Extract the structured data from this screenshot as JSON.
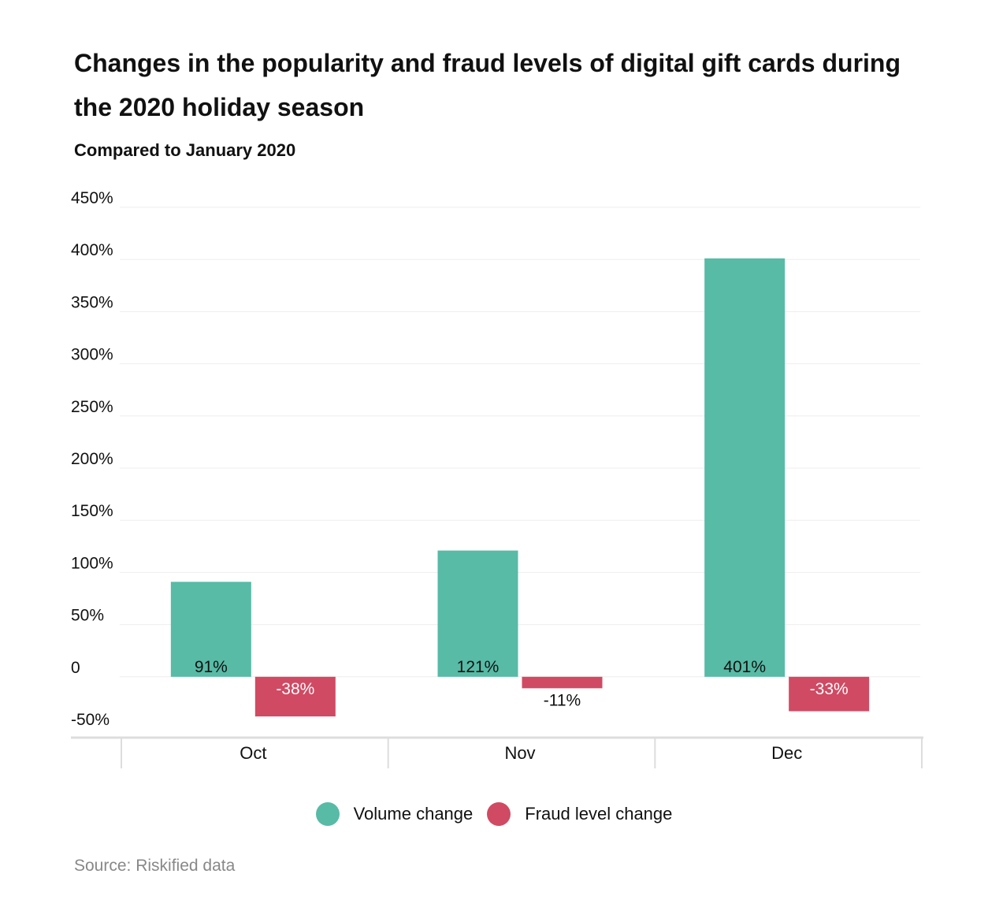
{
  "title": "Changes in the popularity and fraud levels of digital gift cards during the 2020 holiday season",
  "subtitle": "Compared to January 2020",
  "source": "Source: Riskified data",
  "colors": {
    "volume": "#57bba6",
    "fraud": "#d04a63",
    "grid": "#eeeeee",
    "axis": "#dddddd"
  },
  "chart_data": {
    "type": "bar",
    "categories": [
      "Oct",
      "Nov",
      "Dec"
    ],
    "series": [
      {
        "name": "Volume change",
        "values": [
          91,
          121,
          401
        ],
        "labels": [
          "91%",
          "121%",
          "401%"
        ]
      },
      {
        "name": "Fraud level change",
        "values": [
          -38,
          -11,
          -33
        ],
        "labels": [
          "-38%",
          "-11%",
          "-33%"
        ]
      }
    ],
    "ylim": [
      -50,
      450
    ],
    "yticks": [
      -50,
      0,
      50,
      100,
      150,
      200,
      250,
      300,
      350,
      400,
      450
    ],
    "ytick_labels": [
      "-50%",
      "0",
      "50%",
      "100%",
      "150%",
      "200%",
      "250%",
      "300%",
      "350%",
      "400%",
      "450%"
    ],
    "grid": true,
    "legend_position": "bottom-center"
  }
}
